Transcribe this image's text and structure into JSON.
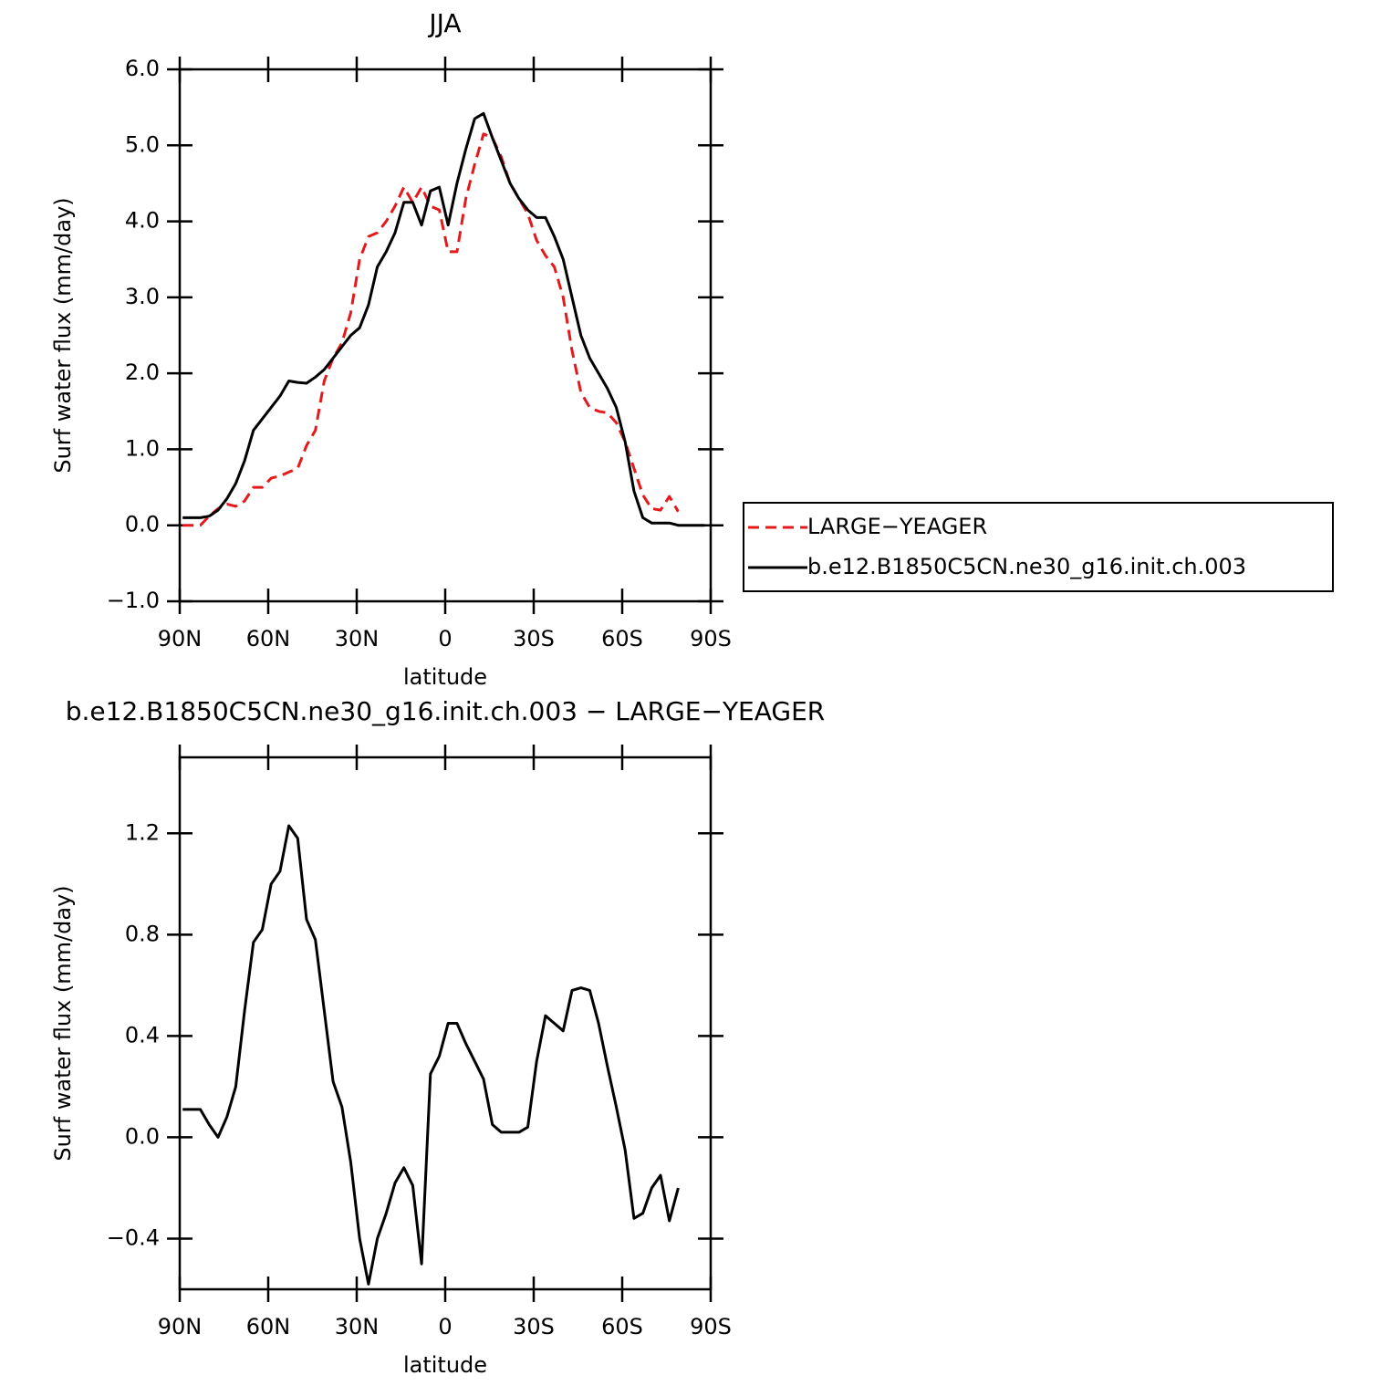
{
  "chart_data": [
    {
      "type": "line",
      "title": "JJA",
      "xlabel": "latitude",
      "ylabel": "Surf water flux (mm/day)",
      "x": [
        89,
        86,
        83,
        80,
        77,
        74,
        71,
        68,
        65,
        62,
        59,
        56,
        53,
        50,
        47,
        44,
        41,
        38,
        35,
        32,
        29,
        26,
        23,
        20,
        17,
        14,
        11,
        8,
        5,
        2,
        -1,
        -4,
        -7,
        -10,
        -13,
        -16,
        -19,
        -22,
        -25,
        -28,
        -31,
        -34,
        -37,
        -40,
        -43,
        -46,
        -49,
        -52,
        -55,
        -58,
        -61,
        -64,
        -67,
        -70,
        -73,
        -76,
        -79,
        -82,
        -85,
        -88
      ],
      "series": [
        {
          "name": "LARGE−YEAGER",
          "color": "#e31a1c",
          "dash": true,
          "values": [
            0.0,
            0.0,
            0.0,
            0.12,
            0.22,
            0.28,
            0.25,
            0.32,
            0.5,
            0.5,
            0.62,
            0.65,
            0.7,
            0.75,
            1.05,
            1.25,
            1.9,
            2.2,
            2.4,
            2.8,
            3.5,
            3.8,
            3.85,
            4.0,
            4.2,
            4.45,
            4.25,
            4.45,
            4.2,
            4.15,
            3.6,
            3.6,
            4.3,
            4.75,
            5.15,
            5.1,
            4.85,
            4.5,
            4.3,
            4.1,
            3.75,
            3.55,
            3.4,
            3.0,
            2.3,
            1.75,
            1.55,
            1.5,
            1.48,
            1.35,
            1.1,
            0.75,
            0.4,
            0.22,
            0.2,
            0.38,
            0.18,
            null,
            null,
            null
          ]
        },
        {
          "name": "b.e12.B1850C5CN.ne30_g16.init.ch.003",
          "color": "#000000",
          "dash": false,
          "values": [
            0.1,
            0.1,
            0.1,
            0.12,
            0.2,
            0.35,
            0.55,
            0.85,
            1.25,
            1.4,
            1.55,
            1.7,
            1.9,
            1.88,
            1.87,
            1.95,
            2.05,
            2.2,
            2.35,
            2.5,
            2.6,
            2.9,
            3.4,
            3.6,
            3.85,
            4.25,
            4.25,
            3.95,
            4.4,
            4.45,
            3.95,
            4.5,
            4.95,
            5.35,
            5.42,
            5.1,
            4.8,
            4.5,
            4.3,
            4.15,
            4.05,
            4.05,
            3.8,
            3.5,
            3.0,
            2.5,
            2.2,
            2.0,
            1.8,
            1.55,
            1.1,
            0.45,
            0.1,
            0.03,
            0.03,
            0.03,
            0.0,
            0.0,
            0.0,
            0.0
          ]
        }
      ],
      "xlim": [
        90,
        -90
      ],
      "xticks": [
        {
          "value": 90,
          "label": "90N"
        },
        {
          "value": 60,
          "label": "60N"
        },
        {
          "value": 30,
          "label": "30N"
        },
        0,
        {
          "value": -30,
          "label": "30S"
        },
        {
          "value": -60,
          "label": "60S"
        },
        {
          "value": -90,
          "label": "90S"
        }
      ],
      "ylim": [
        -1,
        6
      ],
      "yticks": [
        {
          "value": 6,
          "label": "6.0"
        },
        {
          "value": 5,
          "label": "5.0"
        },
        {
          "value": 4,
          "label": "4.0"
        },
        {
          "value": 3,
          "label": "3.0"
        },
        {
          "value": 2,
          "label": "2.0"
        },
        {
          "value": 1,
          "label": "1.0"
        },
        {
          "value": 0,
          "label": "0.0"
        },
        {
          "value": -1,
          "label": "−1.0"
        }
      ],
      "legend": "right"
    },
    {
      "type": "line",
      "title": "b.e12.B1850C5CN.ne30_g16.init.ch.003 − LARGE−YEAGER",
      "xlabel": "latitude",
      "ylabel": "Surf water flux (mm/day)",
      "x": [
        89,
        86,
        83,
        80,
        77,
        74,
        71,
        68,
        65,
        62,
        59,
        56,
        53,
        50,
        47,
        44,
        41,
        38,
        35,
        32,
        29,
        26,
        23,
        20,
        17,
        14,
        11,
        8,
        5,
        2,
        -1,
        -4,
        -7,
        -10,
        -13,
        -16,
        -19,
        -22,
        -25,
        -28,
        -31,
        -34,
        -37,
        -40,
        -43,
        -46,
        -49,
        -52,
        -55,
        -58,
        -61,
        -64,
        -67,
        -70,
        -73,
        -76,
        -79,
        -82,
        -85,
        -88
      ],
      "series": [
        {
          "color": "#000000",
          "dash": false,
          "values": [
            0.11,
            0.11,
            0.11,
            0.05,
            0.0,
            0.08,
            0.2,
            0.5,
            0.77,
            0.82,
            1.0,
            1.05,
            1.23,
            1.18,
            0.86,
            0.78,
            0.5,
            0.22,
            0.12,
            -0.1,
            -0.4,
            -0.58,
            -0.4,
            -0.3,
            -0.18,
            -0.12,
            -0.19,
            -0.5,
            0.25,
            0.32,
            0.45,
            0.45,
            0.37,
            0.3,
            0.23,
            0.05,
            0.02,
            0.02,
            0.02,
            0.04,
            0.3,
            0.48,
            0.45,
            0.42,
            0.58,
            0.59,
            0.58,
            0.45,
            0.28,
            0.12,
            -0.05,
            -0.32,
            -0.3,
            -0.2,
            -0.15,
            -0.33,
            -0.2,
            null,
            null,
            null
          ]
        }
      ],
      "xlim": [
        90,
        -90
      ],
      "xticks": [
        {
          "value": 90,
          "label": "90N"
        },
        {
          "value": 60,
          "label": "60N"
        },
        {
          "value": 30,
          "label": "30N"
        },
        0,
        {
          "value": -30,
          "label": "30S"
        },
        {
          "value": -60,
          "label": "60S"
        },
        {
          "value": -90,
          "label": "90S"
        }
      ],
      "ylim": [
        -0.6,
        1.5
      ],
      "yticks": [
        1.2,
        0.8,
        0.4,
        {
          "value": 0,
          "label": "0.0"
        },
        {
          "value": -0.4,
          "label": "−0.4"
        }
      ]
    }
  ]
}
